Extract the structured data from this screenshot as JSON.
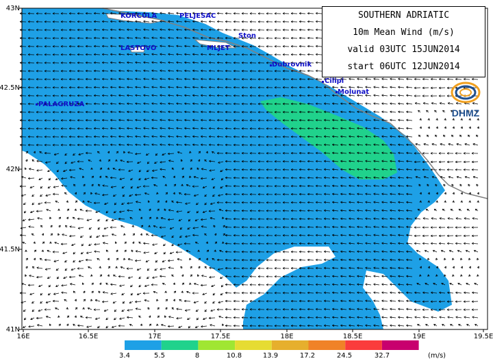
{
  "title": {
    "region": "SOUTHERN ADRIATIC",
    "variable": "10m Mean Wind (m/s)",
    "valid": "valid 03UTC 15JUN2014",
    "start": "start 06UTC 12JUN2014"
  },
  "logo": {
    "text": "DHMZ",
    "icon": "dhmz-swirl-logo"
  },
  "axes": {
    "lon_labels": [
      "16E",
      "16.5E",
      "17E",
      "17.5E",
      "18E",
      "18.5E",
      "19E",
      "19.5E"
    ],
    "lat_labels": [
      "43N",
      "42.5N",
      "42N",
      "41.5N",
      "41N"
    ]
  },
  "places": [
    {
      "name": "KORCULA"
    },
    {
      "name": "PELJESAC"
    },
    {
      "name": "Ston"
    },
    {
      "name": "LASTOVO"
    },
    {
      "name": "MLJET"
    },
    {
      "name": "Dubrovnik"
    },
    {
      "name": "Cilipi"
    },
    {
      "name": "Molunat"
    },
    {
      "name": "PALAGRUZA"
    }
  ],
  "legend": {
    "thresholds": [
      "3.4",
      "5.5",
      "8",
      "10.8",
      "13.9",
      "17.2",
      "24.5",
      "32.7"
    ],
    "colors": [
      "#1ea0e6",
      "#20d28c",
      "#a0e632",
      "#e6dc32",
      "#e6af2d",
      "#f08228",
      "#fa3c3c",
      "#c8006e"
    ],
    "unit": "(m/s)"
  },
  "colors": {
    "sea_fill": "#1ea0e6",
    "strong_fill": "#20d28c",
    "coast": "#808080",
    "label": "#1010c8"
  }
}
